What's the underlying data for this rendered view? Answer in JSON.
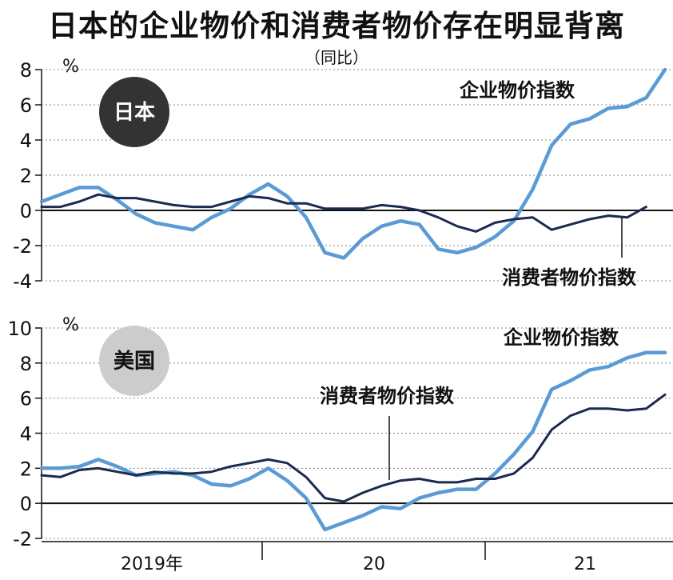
{
  "title": "日本的企业物价和消费者物价存在明显背离",
  "subtitle": "（同比）",
  "colors": {
    "corporate": "#5b9bd5",
    "consumer": "#1c2a4f",
    "japan_badge": "#333333",
    "us_badge": "#cccccc",
    "grid": "#888888"
  },
  "chart_data": [
    {
      "type": "line",
      "panel": "日本",
      "unit": "%",
      "ylim": [
        -4,
        8
      ],
      "yticks": [
        -4,
        -2,
        0,
        2,
        4,
        6,
        8
      ],
      "grid": true,
      "x": [
        "2019-01",
        "2019-02",
        "2019-03",
        "2019-04",
        "2019-05",
        "2019-06",
        "2019-07",
        "2019-08",
        "2019-09",
        "2019-10",
        "2019-11",
        "2019-12",
        "2020-01",
        "2020-02",
        "2020-03",
        "2020-04",
        "2020-05",
        "2020-06",
        "2020-07",
        "2020-08",
        "2020-09",
        "2020-10",
        "2020-11",
        "2020-12",
        "2021-01",
        "2021-02",
        "2021-03",
        "2021-04",
        "2021-05",
        "2021-06",
        "2021-07",
        "2021-08",
        "2021-09",
        "2021-10"
      ],
      "series": [
        {
          "name": "企业物价指数",
          "values": [
            0.5,
            0.9,
            1.3,
            1.3,
            0.6,
            -0.2,
            -0.7,
            -0.9,
            -1.1,
            -0.4,
            0.1,
            0.9,
            1.5,
            0.8,
            -0.4,
            -2.4,
            -2.7,
            -1.6,
            -0.9,
            -0.6,
            -0.8,
            -2.2,
            -2.4,
            -2.1,
            -1.5,
            -0.6,
            1.2,
            3.7,
            4.9,
            5.2,
            5.8,
            5.9,
            6.4,
            8.0
          ]
        },
        {
          "name": "消费者物价指数",
          "values": [
            0.2,
            0.2,
            0.5,
            0.9,
            0.7,
            0.7,
            0.5,
            0.3,
            0.2,
            0.2,
            0.5,
            0.8,
            0.7,
            0.4,
            0.4,
            0.1,
            0.1,
            0.1,
            0.3,
            0.2,
            0.0,
            -0.4,
            -0.9,
            -1.2,
            -0.7,
            -0.5,
            -0.4,
            -1.1,
            -0.8,
            -0.5,
            -0.3,
            -0.4,
            0.2,
            null
          ]
        }
      ],
      "labels": {
        "corporate": "企业物价指数",
        "consumer": "消费者物价指数"
      }
    },
    {
      "type": "line",
      "panel": "美国",
      "unit": "%",
      "ylim": [
        -2,
        10
      ],
      "yticks": [
        -2,
        0,
        2,
        4,
        6,
        8,
        10
      ],
      "grid": true,
      "x": [
        "2019-01",
        "2019-02",
        "2019-03",
        "2019-04",
        "2019-05",
        "2019-06",
        "2019-07",
        "2019-08",
        "2019-09",
        "2019-10",
        "2019-11",
        "2019-12",
        "2020-01",
        "2020-02",
        "2020-03",
        "2020-04",
        "2020-05",
        "2020-06",
        "2020-07",
        "2020-08",
        "2020-09",
        "2020-10",
        "2020-11",
        "2020-12",
        "2021-01",
        "2021-02",
        "2021-03",
        "2021-04",
        "2021-05",
        "2021-06",
        "2021-07",
        "2021-08",
        "2021-09",
        "2021-10"
      ],
      "series": [
        {
          "name": "企业物价指数",
          "values": [
            2.0,
            2.0,
            2.1,
            2.5,
            2.1,
            1.6,
            1.7,
            1.8,
            1.6,
            1.1,
            1.0,
            1.4,
            2.0,
            1.3,
            0.3,
            -1.5,
            -1.1,
            -0.7,
            -0.2,
            -0.3,
            0.3,
            0.6,
            0.8,
            0.8,
            1.7,
            2.8,
            4.1,
            6.5,
            7.0,
            7.6,
            7.8,
            8.3,
            8.6,
            8.6
          ]
        },
        {
          "name": "消费者物价指数",
          "values": [
            1.6,
            1.5,
            1.9,
            2.0,
            1.8,
            1.6,
            1.8,
            1.7,
            1.7,
            1.8,
            2.1,
            2.3,
            2.5,
            2.3,
            1.5,
            0.3,
            0.1,
            0.6,
            1.0,
            1.3,
            1.4,
            1.2,
            1.2,
            1.4,
            1.4,
            1.7,
            2.6,
            4.2,
            5.0,
            5.4,
            5.4,
            5.3,
            5.4,
            6.2
          ]
        }
      ],
      "labels": {
        "corporate": "企业物价指数",
        "consumer": "消费者物价指数"
      }
    }
  ],
  "x_axis": {
    "year_labels": [
      "2019年",
      "20",
      "21"
    ]
  }
}
